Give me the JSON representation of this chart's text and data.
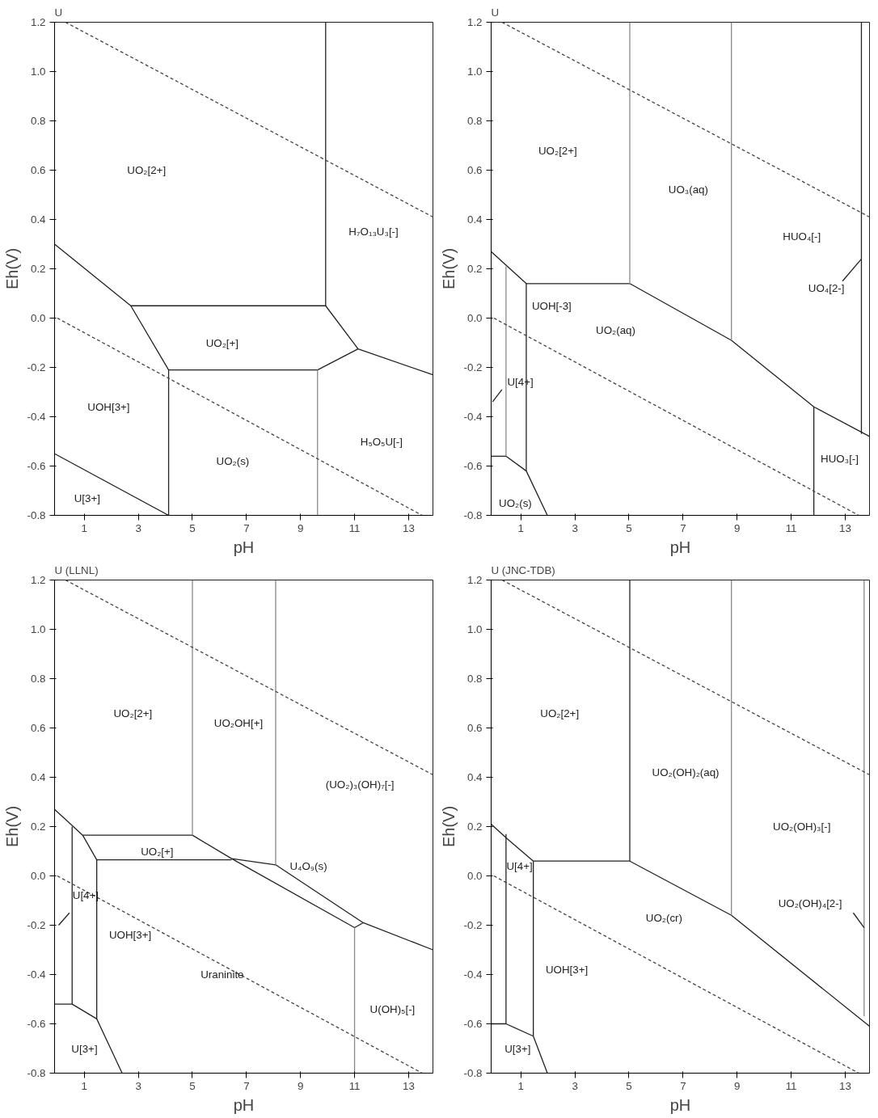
{
  "chart_data": [
    {
      "type": "line",
      "title": "U",
      "xlabel": "pH",
      "ylabel": "Eh(V)",
      "xlim": [
        -0.1,
        13.9
      ],
      "ylim": [
        -0.8,
        1.2
      ],
      "xticks": [
        1,
        3,
        5,
        7,
        9,
        11,
        13
      ],
      "yticks": [
        {
          "value": -0.8,
          "label": "-0.8"
        },
        {
          "value": -0.6,
          "label": "-0.6"
        },
        {
          "value": -0.4,
          "label": "-0.4"
        },
        {
          "value": -0.2,
          "label": "-0.2"
        },
        {
          "value": 0,
          "label": "0.0"
        },
        {
          "value": 0.2,
          "label": "0.2"
        },
        {
          "value": 0.4,
          "label": "0.4"
        },
        {
          "value": 0.6,
          "label": "0.6"
        },
        {
          "value": 0.8,
          "label": "0.8"
        },
        {
          "value": 1.0,
          "label": "1.0"
        },
        {
          "value": 1.2,
          "label": "1.2"
        }
      ],
      "grid": false,
      "series": [
        {
          "color": "#222222",
          "line_style": "solid",
          "x": [
            -0.1,
            2.72,
            9.93,
            9.93
          ],
          "values": [
            0.3,
            0.05,
            0.05,
            1.2
          ]
        },
        {
          "color": "#222222",
          "line_style": "solid",
          "x": [
            9.93,
            11.13,
            13.9
          ],
          "values": [
            0.05,
            -0.125,
            -0.23
          ]
        },
        {
          "color": "#222222",
          "line_style": "solid",
          "x": [
            2.72,
            4.12,
            4.12
          ],
          "values": [
            0.05,
            -0.21,
            -0.8
          ]
        },
        {
          "color": "#222222",
          "line_style": "solid",
          "x": [
            4.12,
            9.63,
            11.13
          ],
          "values": [
            -0.21,
            -0.21,
            -0.125
          ]
        },
        {
          "color": "#222222",
          "line_style": "solid",
          "x": [
            -0.1,
            4.12
          ],
          "values": [
            -0.55,
            -0.8
          ]
        },
        {
          "color": "#888888",
          "line_style": "solid",
          "x": [
            9.63,
            9.63
          ],
          "values": [
            -0.21,
            -0.8
          ]
        },
        {
          "color": "#444444",
          "line_style": "dashed",
          "x": [
            0.3,
            13.9
          ],
          "values": [
            1.2,
            0.41
          ]
        },
        {
          "color": "#444444",
          "line_style": "dashed",
          "x": [
            0,
            13.5
          ],
          "values": [
            0,
            -0.8
          ]
        }
      ],
      "annotations": [
        "UO₂[2+]",
        "H₇O₁₃U₃[-]",
        "UO₂[+]",
        "UOH[3+]",
        "UO₂(s)",
        "H₅O₅U[-]",
        "U[3+]"
      ]
    },
    {
      "type": "line",
      "title": "U",
      "xlabel": "pH",
      "ylabel": "Eh(V)",
      "xlim": [
        -0.1,
        13.9
      ],
      "ylim": [
        -0.8,
        1.2
      ],
      "xticks": [
        1,
        3,
        5,
        7,
        9,
        11,
        13
      ],
      "yticks": [
        {
          "value": -0.8,
          "label": "-0.8"
        },
        {
          "value": -0.6,
          "label": "-0.6"
        },
        {
          "value": -0.4,
          "label": "-0.4"
        },
        {
          "value": -0.2,
          "label": "-0.2"
        },
        {
          "value": 0,
          "label": "0.0"
        },
        {
          "value": 0.2,
          "label": "0.2"
        },
        {
          "value": 0.4,
          "label": "0.4"
        },
        {
          "value": 0.6,
          "label": "0.6"
        },
        {
          "value": 0.8,
          "label": "0.8"
        },
        {
          "value": 1.0,
          "label": "1.0"
        },
        {
          "value": 1.2,
          "label": "1.2"
        }
      ],
      "grid": false,
      "series": [
        {
          "color": "#222222",
          "line_style": "solid",
          "x": [
            -0.1,
            1.2,
            5.03,
            8.79,
            11.84,
            13.9
          ],
          "values": [
            0.27,
            0.14,
            0.14,
            -0.09,
            -0.36,
            -0.48
          ]
        },
        {
          "color": "#222222",
          "line_style": "solid",
          "x": [
            11.84,
            11.84
          ],
          "values": [
            -0.36,
            -0.8
          ]
        },
        {
          "color": "#222222",
          "line_style": "solid",
          "x": [
            13.6,
            13.6
          ],
          "values": [
            1.2,
            -0.47
          ]
        },
        {
          "color": "#222222",
          "line_style": "solid",
          "x": [
            1.2,
            1.2
          ],
          "values": [
            0.14,
            -0.62
          ]
        },
        {
          "color": "#222222",
          "line_style": "solid",
          "x": [
            -0.1,
            0.45,
            1.2,
            1.98
          ],
          "values": [
            -0.56,
            -0.56,
            -0.62,
            -0.8
          ]
        },
        {
          "color": "#888888",
          "line_style": "solid",
          "x": [
            5.03,
            5.03
          ],
          "values": [
            0.14,
            1.2
          ]
        },
        {
          "color": "#888888",
          "line_style": "solid",
          "x": [
            8.79,
            8.79
          ],
          "values": [
            -0.09,
            1.2
          ]
        },
        {
          "color": "#888888",
          "line_style": "solid",
          "x": [
            0.45,
            0.45
          ],
          "values": [
            0.21,
            -0.56
          ]
        },
        {
          "color": "#444444",
          "line_style": "dashed",
          "x": [
            0.3,
            13.9
          ],
          "values": [
            1.2,
            0.41
          ]
        },
        {
          "color": "#444444",
          "line_style": "dashed",
          "x": [
            0,
            13.5
          ],
          "values": [
            0,
            -0.8
          ]
        },
        {
          "color": "#222222",
          "line_style": "solid",
          "x": [
            12.9,
            13.6
          ],
          "values": [
            0.15,
            0.24
          ]
        },
        {
          "color": "#222222",
          "line_style": "solid",
          "x": [
            0.3,
            -0.05
          ],
          "values": [
            -0.29,
            -0.34
          ]
        }
      ],
      "annotations": [
        "UO₂[2+]",
        "UO₃(aq)",
        "HUO₄[-]",
        "UO₄[2-]",
        "UOH[-3]",
        "UO₂(aq)",
        "U[4+]",
        "HUO₃[-]",
        "UO₂(s)"
      ]
    },
    {
      "type": "line",
      "title": "U (LLNL)",
      "xlabel": "pH",
      "ylabel": "Eh(V)",
      "xlim": [
        -0.1,
        13.9
      ],
      "ylim": [
        -0.8,
        1.2
      ],
      "xticks": [
        1,
        3,
        5,
        7,
        9,
        11,
        13
      ],
      "yticks": [
        {
          "value": -0.8,
          "label": "-0.8"
        },
        {
          "value": -0.6,
          "label": "-0.6"
        },
        {
          "value": -0.4,
          "label": "-0.4"
        },
        {
          "value": -0.2,
          "label": "-0.2"
        },
        {
          "value": 0,
          "label": "0.0"
        },
        {
          "value": 0.2,
          "label": "0.2"
        },
        {
          "value": 0.4,
          "label": "0.4"
        },
        {
          "value": 0.6,
          "label": "0.6"
        },
        {
          "value": 0.8,
          "label": "0.8"
        },
        {
          "value": 1.0,
          "label": "1.0"
        },
        {
          "value": 1.2,
          "label": "1.2"
        }
      ],
      "grid": false,
      "series": [
        {
          "color": "#222222",
          "line_style": "solid",
          "x": [
            -0.1,
            0.94,
            5.0,
            6.45,
            8.08,
            11.32,
            13.9
          ],
          "values": [
            0.27,
            0.165,
            0.165,
            0.07,
            0.045,
            -0.19,
            -0.3
          ]
        },
        {
          "color": "#222222",
          "line_style": "solid",
          "x": [
            0.94,
            1.46,
            6.45
          ],
          "values": [
            0.165,
            0.065,
            0.065
          ]
        },
        {
          "color": "#222222",
          "line_style": "solid",
          "x": [
            6.45,
            11.0,
            11.32
          ],
          "values": [
            0.07,
            -0.21,
            -0.19
          ]
        },
        {
          "color": "#222222",
          "line_style": "solid",
          "x": [
            0.55,
            0.55
          ],
          "values": [
            0.2,
            -0.52
          ]
        },
        {
          "color": "#222222",
          "line_style": "solid",
          "x": [
            1.46,
            1.46
          ],
          "values": [
            0.065,
            -0.58
          ]
        },
        {
          "color": "#222222",
          "line_style": "solid",
          "x": [
            -0.1,
            0.55,
            1.46,
            2.4
          ],
          "values": [
            -0.52,
            -0.52,
            -0.58,
            -0.8
          ]
        },
        {
          "color": "#888888",
          "line_style": "solid",
          "x": [
            5.0,
            5.0
          ],
          "values": [
            0.165,
            1.2
          ]
        },
        {
          "color": "#888888",
          "line_style": "solid",
          "x": [
            8.08,
            8.08
          ],
          "values": [
            0.045,
            1.2
          ]
        },
        {
          "color": "#888888",
          "line_style": "solid",
          "x": [
            11.0,
            11.0
          ],
          "values": [
            -0.21,
            -0.8
          ]
        },
        {
          "color": "#444444",
          "line_style": "dashed",
          "x": [
            0.3,
            13.9
          ],
          "values": [
            1.2,
            0.41
          ]
        },
        {
          "color": "#444444",
          "line_style": "dashed",
          "x": [
            0,
            13.5
          ],
          "values": [
            0,
            -0.8
          ]
        },
        {
          "color": "#222222",
          "line_style": "solid",
          "x": [
            0.45,
            0.05
          ],
          "values": [
            -0.15,
            -0.2
          ]
        }
      ],
      "annotations": [
        "UO₂[2+]",
        "UO₂OH[+]",
        "(UO₂)₃(OH)₇[-]",
        "UO₂[+]",
        "U₄O₉(s)",
        "U[4+]",
        "UOH[3+]",
        "Uraninite",
        "U(OH)₅[-]",
        "U[3+]"
      ]
    },
    {
      "type": "line",
      "title": "U (JNC-TDB)",
      "xlabel": "pH",
      "ylabel": "Eh(V)",
      "xlim": [
        -0.1,
        13.9
      ],
      "ylim": [
        -0.8,
        1.2
      ],
      "xticks": [
        1,
        3,
        5,
        7,
        9,
        11,
        13
      ],
      "yticks": [
        {
          "value": -0.8,
          "label": "-0.8"
        },
        {
          "value": -0.6,
          "label": "-0.6"
        },
        {
          "value": -0.4,
          "label": "-0.4"
        },
        {
          "value": -0.2,
          "label": "-0.2"
        },
        {
          "value": 0,
          "label": "0.0"
        },
        {
          "value": 0.2,
          "label": "0.2"
        },
        {
          "value": 0.4,
          "label": "0.4"
        },
        {
          "value": 0.6,
          "label": "0.6"
        },
        {
          "value": 0.8,
          "label": "0.8"
        },
        {
          "value": 1.0,
          "label": "1.0"
        },
        {
          "value": 1.2,
          "label": "1.2"
        }
      ],
      "grid": false,
      "series": [
        {
          "color": "#222222",
          "line_style": "solid",
          "x": [
            -0.1,
            0.5,
            1.46,
            5.03,
            8.79,
            13.9
          ],
          "values": [
            0.21,
            0.15,
            0.06,
            0.06,
            -0.16,
            -0.61
          ]
        },
        {
          "color": "#222222",
          "line_style": "solid",
          "x": [
            5.03,
            5.03
          ],
          "values": [
            0.06,
            1.2
          ]
        },
        {
          "color": "#222222",
          "line_style": "solid",
          "x": [
            0.45,
            0.45
          ],
          "values": [
            0.17,
            -0.6
          ]
        },
        {
          "color": "#222222",
          "line_style": "solid",
          "x": [
            1.46,
            1.46
          ],
          "values": [
            0.06,
            -0.65
          ]
        },
        {
          "color": "#222222",
          "line_style": "solid",
          "x": [
            -0.1,
            0.45,
            1.46,
            1.98
          ],
          "values": [
            -0.6,
            -0.6,
            -0.65,
            -0.8
          ]
        },
        {
          "color": "#888888",
          "line_style": "solid",
          "x": [
            8.79,
            8.79
          ],
          "values": [
            -0.16,
            1.2
          ]
        },
        {
          "color": "#888888",
          "line_style": "solid",
          "x": [
            13.7,
            13.7
          ],
          "values": [
            -0.57,
            1.2
          ]
        },
        {
          "color": "#444444",
          "line_style": "dashed",
          "x": [
            0.3,
            13.9
          ],
          "values": [
            1.2,
            0.41
          ]
        },
        {
          "color": "#444444",
          "line_style": "dashed",
          "x": [
            0,
            13.5
          ],
          "values": [
            0,
            -0.8
          ]
        },
        {
          "color": "#222222",
          "line_style": "solid",
          "x": [
            13.3,
            13.7
          ],
          "values": [
            -0.15,
            -0.21
          ]
        }
      ],
      "annotations": [
        "UO₂[2+]",
        "UO₂(OH)₂(aq)",
        "UO₂(OH)₃[-]",
        "U[4+]",
        "UO₂(cr)",
        "UO₂(OH)₄[2-]",
        "UOH[3+]",
        "U[3+]"
      ]
    }
  ]
}
